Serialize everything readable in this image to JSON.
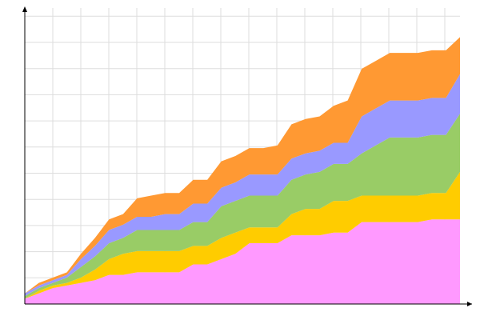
{
  "chart_data": {
    "type": "area",
    "stacked": true,
    "title": "",
    "xlabel": "",
    "ylabel": "",
    "x": [
      0,
      1,
      2,
      3,
      4,
      5,
      6,
      7,
      8,
      9,
      10,
      11,
      12,
      13,
      14,
      15,
      16,
      17,
      18,
      19,
      20,
      21,
      22,
      23,
      24,
      25,
      26,
      27,
      28,
      29,
      30,
      31
    ],
    "xlim": [
      0,
      31
    ],
    "ylim": [
      0,
      11.2
    ],
    "grid": true,
    "legend": "none",
    "series": [
      {
        "color": "#ff99ff",
        "values": [
          0.2,
          0.4,
          0.6,
          0.7,
          0.8,
          0.9,
          1.1,
          1.1,
          1.2,
          1.2,
          1.2,
          1.2,
          1.5,
          1.5,
          1.7,
          1.9,
          2.3,
          2.3,
          2.3,
          2.6,
          2.6,
          2.6,
          2.7,
          2.7,
          3.1,
          3.1,
          3.1,
          3.1,
          3.1,
          3.2,
          3.2,
          3.2
        ]
      },
      {
        "color": "#ffcc00",
        "values": [
          0.0,
          0.1,
          0.1,
          0.1,
          0.2,
          0.4,
          0.6,
          0.8,
          0.8,
          0.8,
          0.8,
          0.8,
          0.7,
          0.7,
          0.8,
          0.8,
          0.6,
          0.6,
          0.6,
          0.8,
          1.0,
          1.0,
          1.2,
          1.2,
          1.0,
          1.0,
          1.0,
          1.0,
          1.0,
          1.0,
          1.0,
          1.8
        ]
      },
      {
        "color": "#99cc66",
        "values": [
          0.1,
          0.1,
          0.1,
          0.2,
          0.4,
          0.5,
          0.6,
          0.6,
          0.8,
          0.8,
          0.8,
          0.8,
          0.9,
          0.9,
          1.2,
          1.2,
          1.2,
          1.2,
          1.2,
          1.3,
          1.3,
          1.4,
          1.4,
          1.4,
          1.6,
          1.9,
          2.2,
          2.2,
          2.2,
          2.2,
          2.2,
          2.2
        ]
      },
      {
        "color": "#9999ff",
        "values": [
          0.1,
          0.1,
          0.1,
          0.1,
          0.3,
          0.4,
          0.5,
          0.5,
          0.5,
          0.5,
          0.6,
          0.6,
          0.7,
          0.7,
          0.7,
          0.7,
          0.8,
          0.8,
          0.8,
          0.8,
          0.8,
          0.8,
          0.8,
          0.8,
          1.4,
          1.4,
          1.4,
          1.4,
          1.4,
          1.4,
          1.4,
          1.5
        ]
      },
      {
        "color": "#ff9933",
        "values": [
          0.0,
          0.1,
          0.1,
          0.1,
          0.2,
          0.3,
          0.4,
          0.4,
          0.7,
          0.8,
          0.8,
          0.8,
          0.9,
          0.9,
          1.0,
          1.0,
          1.0,
          1.0,
          1.1,
          1.3,
          1.3,
          1.3,
          1.4,
          1.6,
          1.8,
          1.8,
          1.8,
          1.8,
          1.8,
          1.8,
          1.8,
          1.4
        ]
      }
    ]
  }
}
